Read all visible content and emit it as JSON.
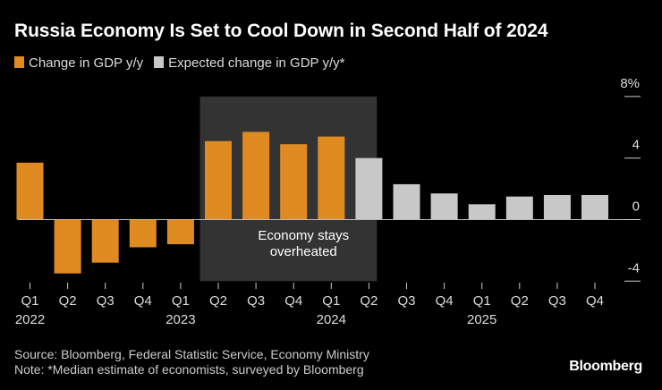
{
  "title": "Russia Economy Is Set to Cool Down in Second Half of 2024",
  "legend": [
    {
      "label": "Change in GDP y/y",
      "color": "#e08b22"
    },
    {
      "label": "Expected change in GDP y/y*",
      "color": "#c8c8c8"
    }
  ],
  "annotation": {
    "line1": "Economy stays",
    "line2": "overheated",
    "shade_from": "Q2 2023",
    "shade_to": "Q2 2024",
    "color": "#333333"
  },
  "source": "Source: Bloomberg, Federal Statistic Service, Economy Ministry",
  "note": "Note: *Median estimate of economists, surveyed by Bloomberg",
  "brand": "Bloomberg",
  "chart_data": {
    "type": "bar",
    "title": "Russia Economy Is Set to Cool Down in Second Half of 2024",
    "categories": [
      "Q1",
      "Q2",
      "Q3",
      "Q4",
      "Q1",
      "Q2",
      "Q3",
      "Q4",
      "Q1",
      "Q2",
      "Q3",
      "Q4",
      "Q1",
      "Q2",
      "Q3",
      "Q4"
    ],
    "year_labels": [
      {
        "index": 0,
        "label": "2022"
      },
      {
        "index": 4,
        "label": "2023"
      },
      {
        "index": 8,
        "label": "2024"
      },
      {
        "index": 12,
        "label": "2025"
      }
    ],
    "series": [
      {
        "name": "Change in GDP y/y",
        "color": "#e08b22",
        "values": [
          3.7,
          -3.5,
          -2.8,
          -1.8,
          -1.6,
          5.1,
          5.7,
          4.9,
          5.4,
          null,
          null,
          null,
          null,
          null,
          null,
          null
        ]
      },
      {
        "name": "Expected change in GDP y/y*",
        "color": "#c8c8c8",
        "values": [
          null,
          null,
          null,
          null,
          null,
          null,
          null,
          null,
          null,
          4.0,
          2.3,
          1.7,
          1.0,
          1.5,
          1.6,
          1.6
        ]
      }
    ],
    "yticks": [
      {
        "v": 8,
        "label": "8%"
      },
      {
        "v": 4,
        "label": "4"
      },
      {
        "v": 0,
        "label": "0"
      },
      {
        "v": -4,
        "label": "-4"
      }
    ],
    "ylim": [
      -4,
      8
    ],
    "grid": false,
    "legend_position": "top-left"
  }
}
